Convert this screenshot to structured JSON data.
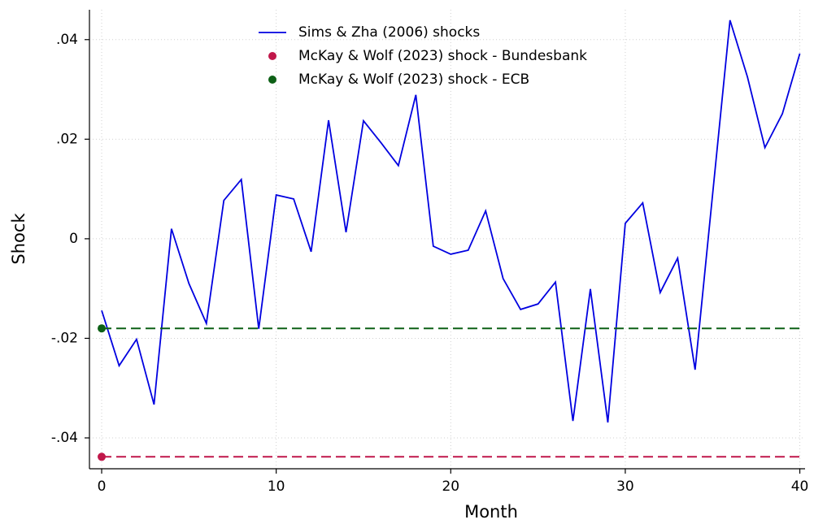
{
  "chart_data": {
    "type": "line",
    "x_label": "Month",
    "y_label": "Shock",
    "x": [
      0,
      1,
      2,
      3,
      4,
      5,
      6,
      7,
      8,
      9,
      10,
      11,
      12,
      13,
      14,
      15,
      16,
      17,
      18,
      19,
      20,
      21,
      22,
      23,
      24,
      25,
      26,
      27,
      28,
      29,
      30,
      31,
      32,
      33,
      34,
      35,
      36,
      37,
      38,
      39,
      40
    ],
    "series": [
      {
        "name": "Sims & Zha (2006) shocks",
        "color": "#0000e0",
        "style": "line",
        "values": [
          -0.0144,
          -0.0255,
          -0.0202,
          -0.0333,
          0.002,
          -0.009,
          -0.017,
          0.0077,
          0.0119,
          -0.0181,
          0.0088,
          0.008,
          -0.0026,
          0.0238,
          0.0013,
          0.0237,
          0.0193,
          0.0147,
          0.0289,
          -0.0015,
          -0.0031,
          -0.0023,
          0.0056,
          -0.008,
          -0.0142,
          -0.0131,
          -0.0087,
          -0.0366,
          -0.0101,
          -0.0369,
          0.0031,
          0.0072,
          -0.0108,
          -0.0039,
          -0.0263,
          0.0088,
          0.0439,
          0.0325,
          0.0183,
          0.0251,
          0.0372
        ]
      },
      {
        "name": "McKay & Wolf (2023) shock - Bundesbank",
        "color": "#c0174a",
        "style": "point",
        "hline": true,
        "x": [
          0
        ],
        "values": [
          -0.0438
        ]
      },
      {
        "name": "McKay & Wolf (2023) shock - ECB",
        "color": "#0d6016",
        "style": "point",
        "hline": true,
        "x": [
          0
        ],
        "values": [
          -0.018
        ]
      }
    ],
    "xlim": [
      -0.7,
      40.3
    ],
    "ylim": [
      -0.0462,
      0.046
    ],
    "xticks": [
      0,
      10,
      20,
      30,
      40
    ],
    "yticks": [
      {
        "value": -0.04,
        "label": "-.04"
      },
      {
        "value": -0.02,
        "label": "-.02"
      },
      0,
      {
        "value": 0.02,
        "label": ".02"
      },
      {
        "value": 0.04,
        "label": ".04"
      }
    ],
    "grid": true,
    "legend": "top"
  }
}
